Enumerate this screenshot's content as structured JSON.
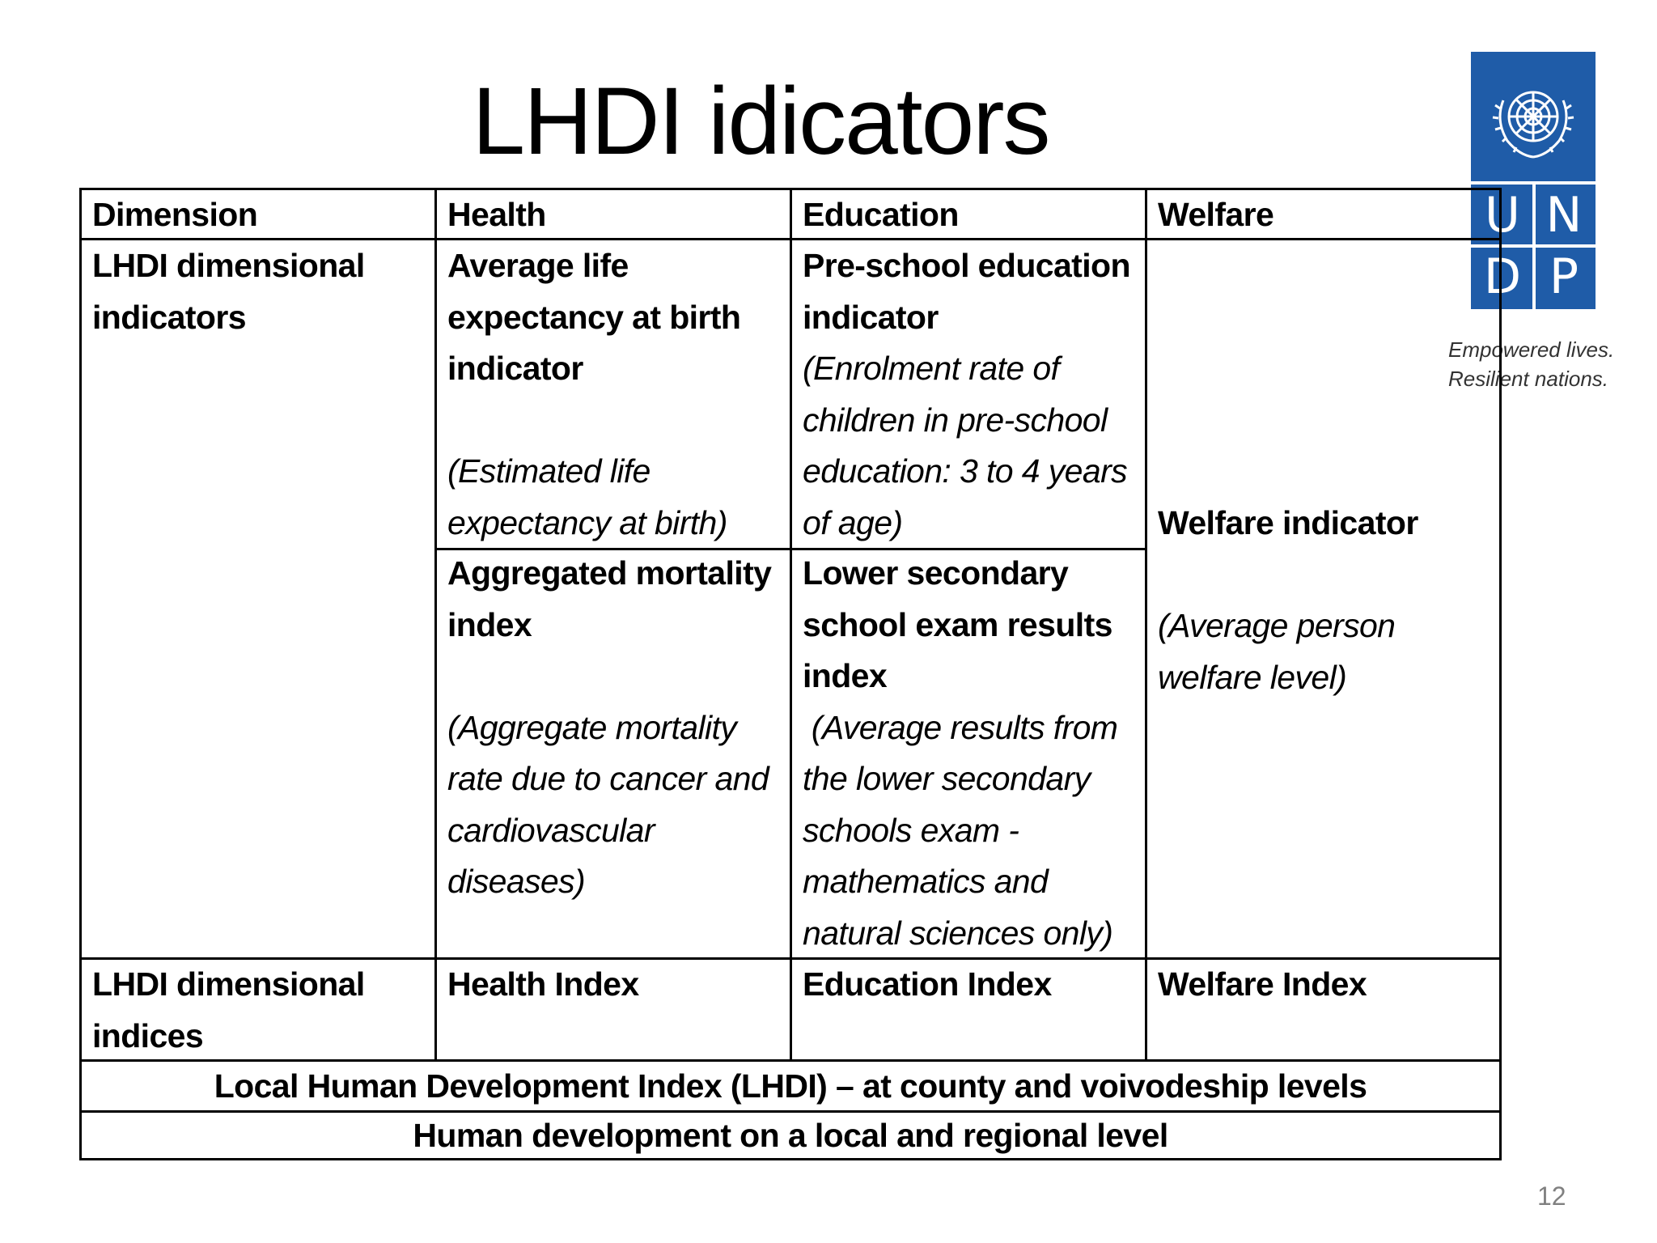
{
  "slide": {
    "title": "LHDI idicators",
    "page_number": "12"
  },
  "logo": {
    "letters": [
      "U",
      "N",
      "D",
      "P"
    ],
    "tagline": [
      "Empowered lives.",
      "Resilient nations."
    ],
    "color": "#1f5ca8"
  },
  "table": {
    "headers": [
      "Dimension",
      "Health",
      "Education",
      "Welfare"
    ],
    "indicators_label": "LHDI dimensional indicators",
    "health_1_title": "Average life expectancy at birth indicator",
    "health_1_note": "(Estimated life expectancy at birth)",
    "health_2_title": "Aggregated mortality index",
    "health_2_note": "(Aggregate mortality rate due to cancer and cardiovascular diseases)",
    "edu_1_title": "Pre-school education indicator",
    "edu_1_note": "(Enrolment rate of children in pre-school education: 3 to 4 years of age)",
    "edu_2_title": "Lower secondary school exam results index",
    "edu_2_note": " (Average results from the lower secondary schools exam - mathematics and natural sciences only)",
    "welfare_title": "Welfare indicator",
    "welfare_note": "(Average person welfare level)",
    "indices_label": "LHDI dimensional indices",
    "indices": [
      "Health Index",
      "Education Index",
      "Welfare Index"
    ],
    "lhdi_row": "Local Human Development Index (LHDI) – at county and voivodeship levels",
    "final_row": "Human development on a local and regional level"
  }
}
